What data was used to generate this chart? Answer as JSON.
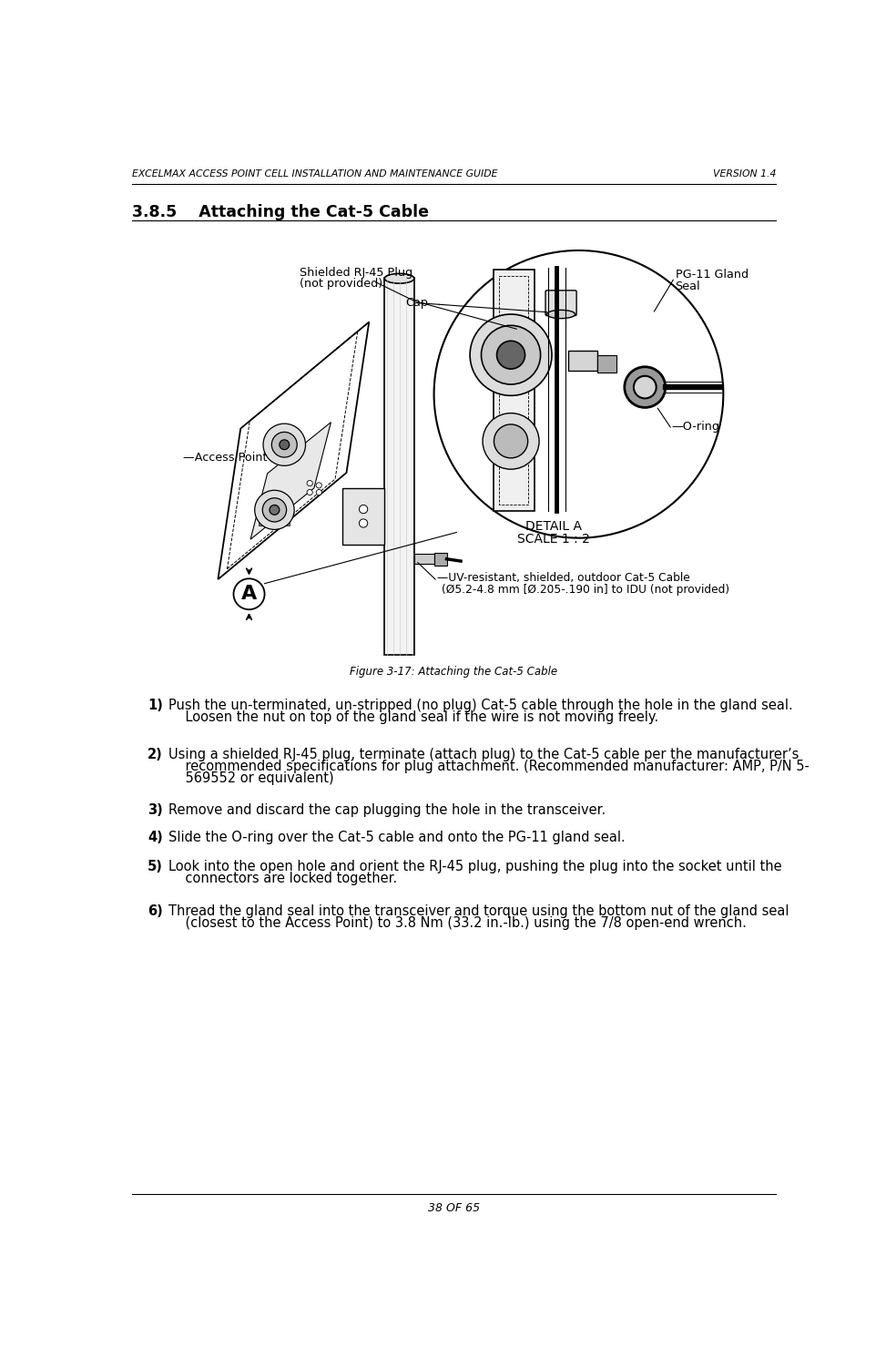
{
  "header_left": "EXCELMAX ACCESS POINT CELL INSTALLATION AND MAINTENANCE GUIDE",
  "header_right": "VERSION 1.4",
  "section_title": "3.8.5    Attaching the Cat-5 Cable",
  "figure_caption": "Figure 3-17: Attaching the Cat-5 Cable",
  "footer": "38 OF 65",
  "step1_bold": "1)",
  "step1_wrap": [
    "Push the un-terminated, un-stripped (no plug) Cat-5 cable through the hole in the gland seal.",
    "    Loosen the nut on top of the gland seal if the wire is not moving freely."
  ],
  "step2_bold": "2)",
  "step2_wrap": [
    "Using a shielded RJ-45 plug, terminate (attach plug) to the Cat-5 cable per the manufacturer’s",
    "    recommended specifications for plug attachment. (Recommended manufacturer: AMP, P/N 5-",
    "    569552 or equivalent)"
  ],
  "step3_bold": "3)",
  "step3_wrap": [
    "Remove and discard the cap plugging the hole in the transceiver."
  ],
  "step4_bold": "4)",
  "step4_wrap": [
    "Slide the O-ring over the Cat-5 cable and onto the PG-11 gland seal."
  ],
  "step5_bold": "5)",
  "step5_wrap": [
    "Look into the open hole and orient the RJ-45 plug, pushing the plug into the socket until the",
    "    connectors are locked together."
  ],
  "step6_bold": "6)",
  "step6_wrap": [
    "Thread the gland seal into the transceiver and torque using the bottom nut of the gland seal",
    "    (closest to the Access Point) to 3.8 Nm (33.2 in.-lb.) using the 7/8 open-end wrench."
  ],
  "bg_color": "#ffffff",
  "text_color": "#000000",
  "line_color": "#000000"
}
